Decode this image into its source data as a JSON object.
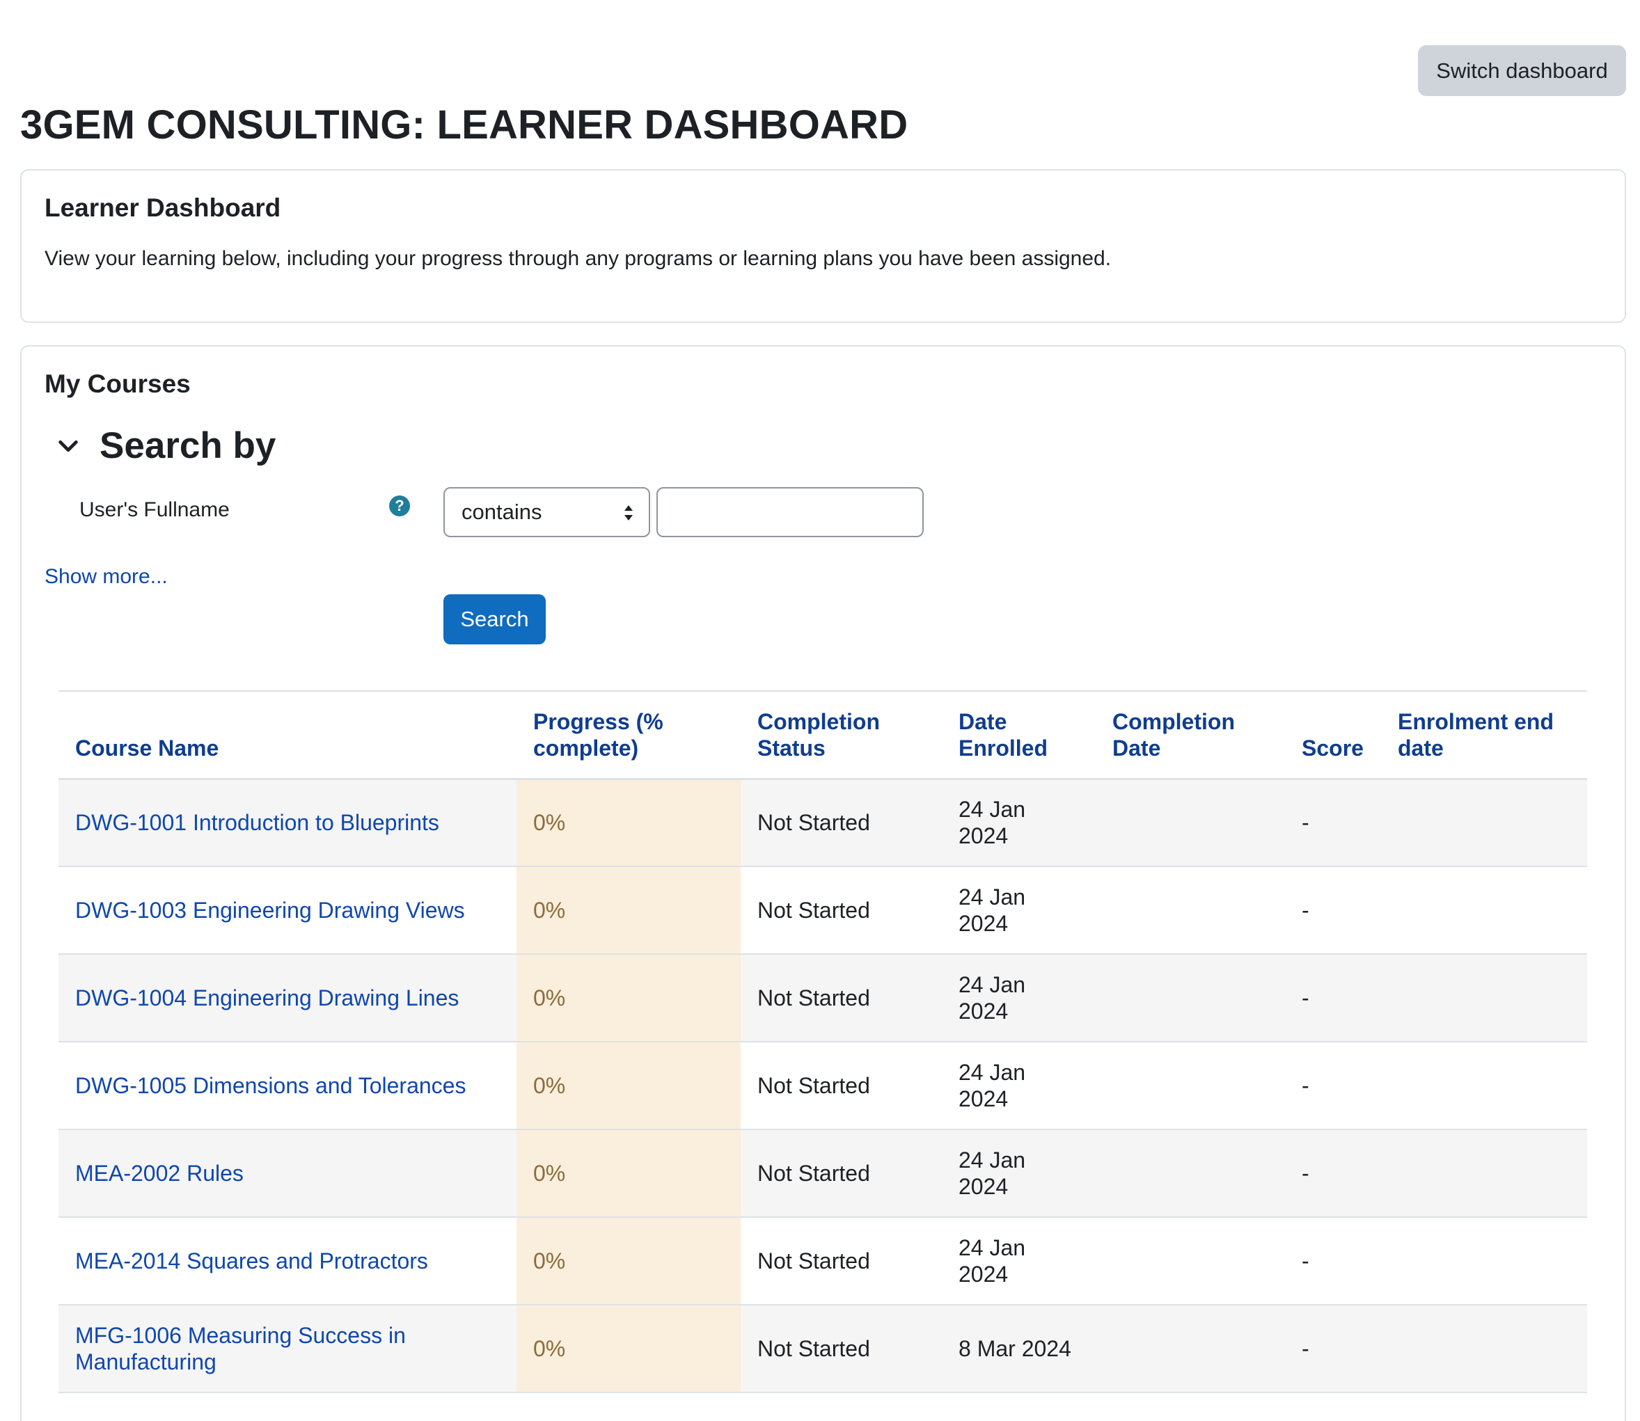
{
  "header": {
    "switch_dashboard_label": "Switch dashboard",
    "page_title": "3GEM CONSULTING: LEARNER DASHBOARD"
  },
  "intro_card": {
    "title": "Learner Dashboard",
    "text": "View your learning below, including your progress through any programs or learning plans you have been assigned."
  },
  "courses_card": {
    "title": "My Courses",
    "search": {
      "section_title": "Search by",
      "field_label": "User's Fullname",
      "operator_value": "contains",
      "text_value": "",
      "show_more_label": "Show more...",
      "search_button_label": "Search"
    },
    "table": {
      "columns": [
        "Course Name",
        "Progress (% complete)",
        "Completion Status",
        "Date Enrolled",
        "Completion Date",
        "Score",
        "Enrolment end date"
      ],
      "rows": [
        {
          "course": "DWG-1001 Introduction to Blueprints",
          "progress": "0%",
          "status": "Not Started",
          "enrolled": "24 Jan 2024",
          "completed": "",
          "score": "-",
          "end": ""
        },
        {
          "course": "DWG-1003 Engineering Drawing Views",
          "progress": "0%",
          "status": "Not Started",
          "enrolled": "24 Jan 2024",
          "completed": "",
          "score": "-",
          "end": ""
        },
        {
          "course": "DWG-1004 Engineering Drawing Lines",
          "progress": "0%",
          "status": "Not Started",
          "enrolled": "24 Jan 2024",
          "completed": "",
          "score": "-",
          "end": ""
        },
        {
          "course": "DWG-1005 Dimensions and Tolerances",
          "progress": "0%",
          "status": "Not Started",
          "enrolled": "24 Jan 2024",
          "completed": "",
          "score": "-",
          "end": ""
        },
        {
          "course": "MEA-2002 Rules",
          "progress": "0%",
          "status": "Not Started",
          "enrolled": "24 Jan 2024",
          "completed": "",
          "score": "-",
          "end": ""
        },
        {
          "course": "MEA-2014 Squares and Protractors",
          "progress": "0%",
          "status": "Not Started",
          "enrolled": "24 Jan 2024",
          "completed": "",
          "score": "-",
          "end": ""
        },
        {
          "course": "MFG-1006 Measuring Success in Manufacturing",
          "progress": "0%",
          "status": "Not Started",
          "enrolled": "8 Mar 2024",
          "completed": "",
          "score": "-",
          "end": ""
        }
      ]
    }
  },
  "colors": {
    "link": "#0f47ad",
    "header_text": "#0f3d8f",
    "primary_button": "#0f6cbf",
    "secondary_button": "#ced4da",
    "progress_cell": "#faeedd",
    "help_icon": "#1f7e9a"
  },
  "icons": {
    "collapse": "chevron-down-icon",
    "help": "question-circle-icon",
    "select": "select-arrows-icon"
  }
}
